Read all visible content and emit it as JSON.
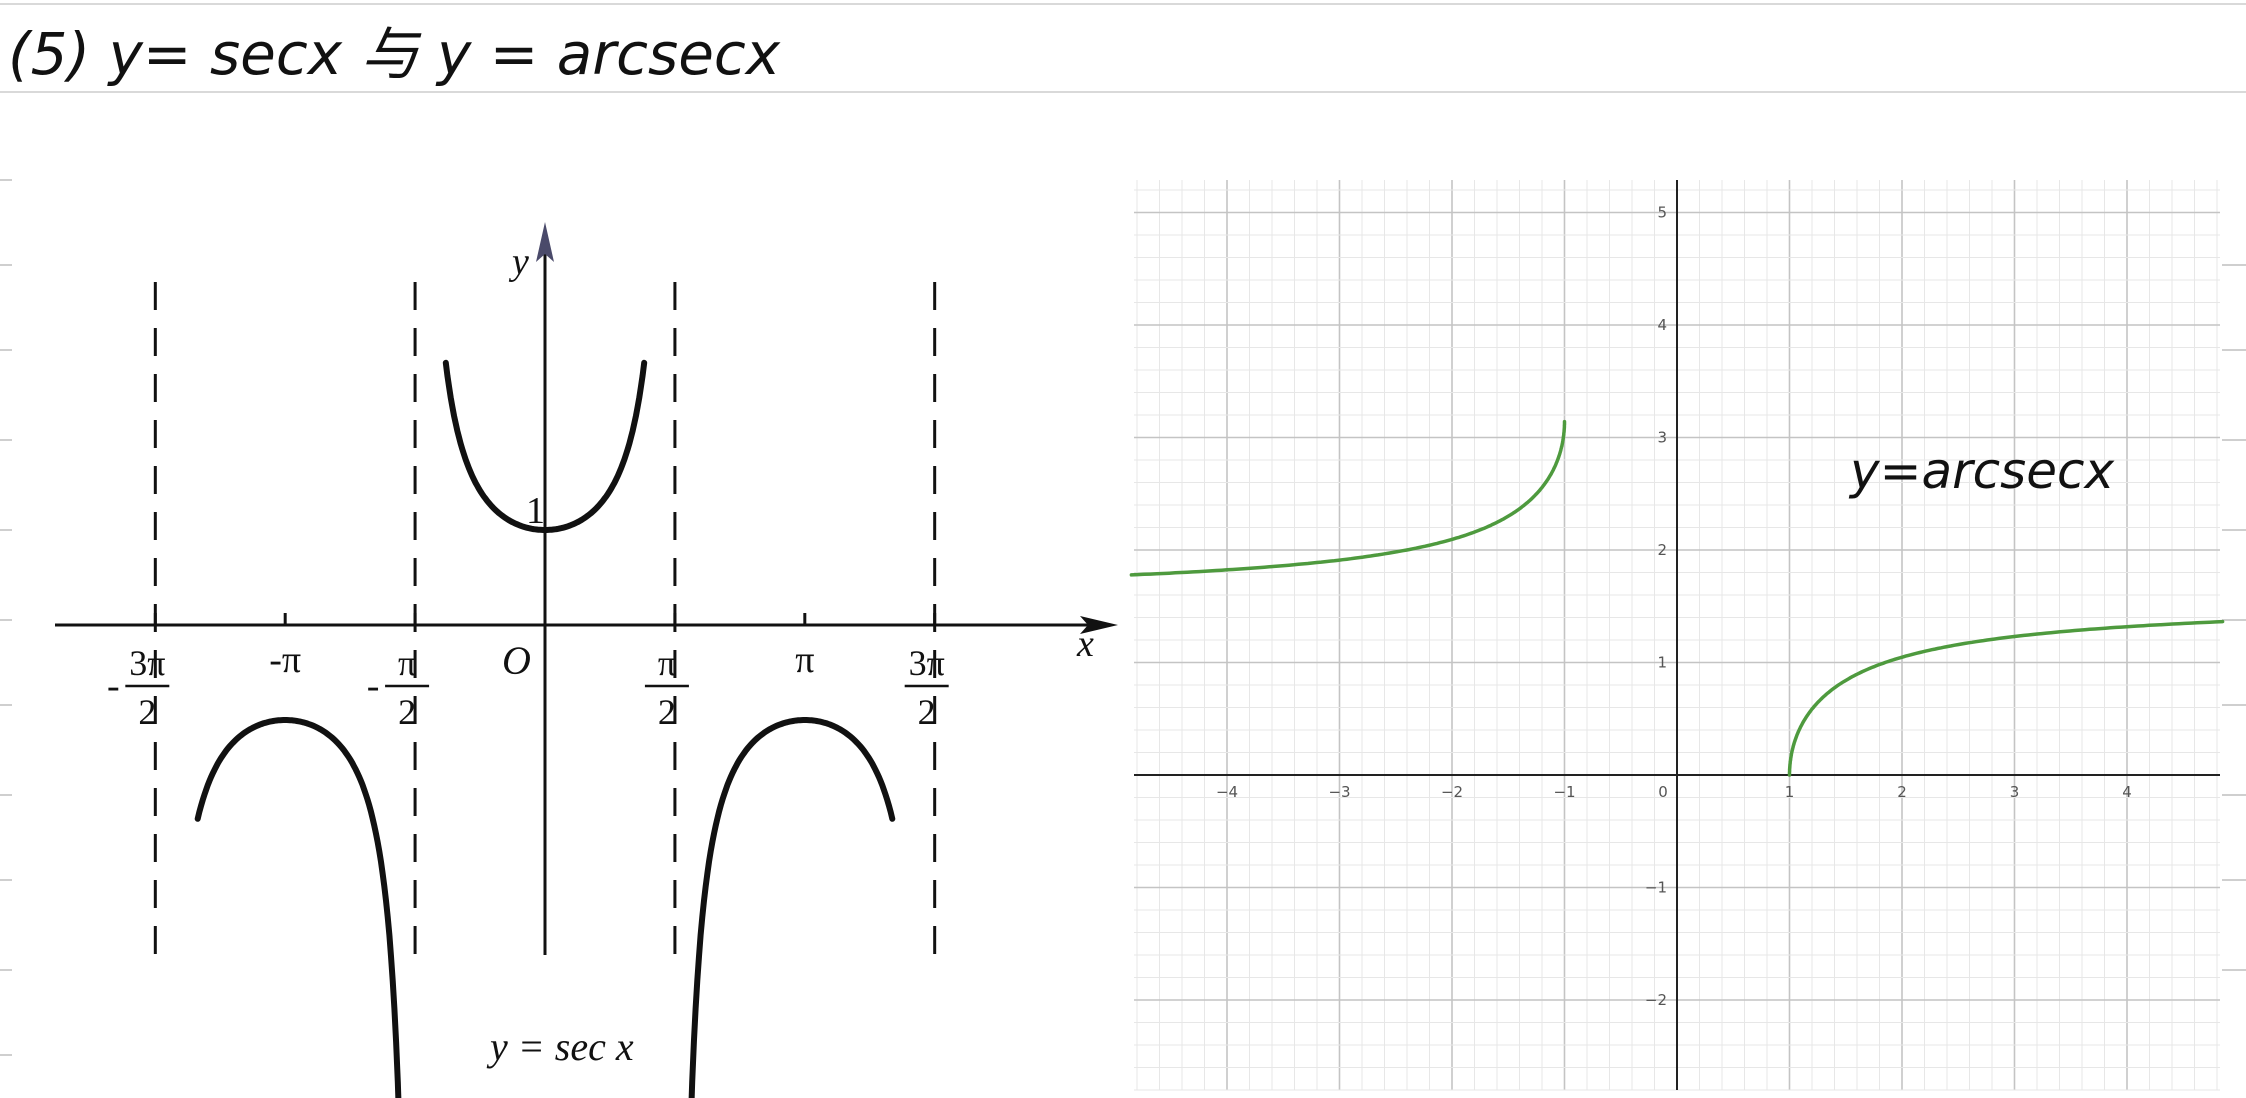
{
  "header": {
    "title": "(5)  y= secx 与 y = arcsecx"
  },
  "chart_data": [
    {
      "type": "line",
      "title": "",
      "caption": "y = sec x",
      "xlabel": "x",
      "ylabel": "y",
      "origin_label": "O",
      "function": "sec",
      "xlim": [
        -4.712,
        4.712
      ],
      "ylim": [
        -3.2,
        3.2
      ],
      "asymptotes": [
        -4.712,
        -1.571,
        1.571,
        4.712
      ],
      "x_ticks": [
        {
          "value": -4.712,
          "num": "3π",
          "den": "2",
          "sign": "-"
        },
        {
          "value": -3.1416,
          "text": "-π"
        },
        {
          "value": -1.571,
          "num": "π",
          "den": "2",
          "sign": "-"
        },
        {
          "value": 1.571,
          "num": "π",
          "den": "2",
          "sign": ""
        },
        {
          "value": 3.1416,
          "text": "π"
        },
        {
          "value": 4.712,
          "num": "3π",
          "den": "2",
          "sign": ""
        }
      ],
      "y_ticks": [
        {
          "value": 1,
          "text": "1"
        }
      ],
      "series": [
        {
          "x_range": [
            -4.2,
            -1.76
          ],
          "values_desc": "sec x, branch (-3π/2, -π/2)"
        },
        {
          "x_range": [
            -1.2,
            1.2
          ],
          "values_desc": "sec x, branch (-π/2, π/2)"
        },
        {
          "x_range": [
            1.76,
            4.2
          ],
          "values_desc": "sec x, branch (π/2, 3π/2)"
        }
      ],
      "color": "#111111"
    },
    {
      "type": "line",
      "title": "",
      "annotation": "y=arcsecx",
      "function": "arcsec",
      "xlim": [
        -4.85,
        4.85
      ],
      "ylim": [
        -2.75,
        5.2
      ],
      "x_ticks": [
        -4,
        -3,
        -2,
        -1,
        0,
        1,
        2,
        3,
        4
      ],
      "y_ticks": [
        -2,
        -1,
        1,
        2,
        3,
        4,
        5
      ],
      "grid": true,
      "series": [
        {
          "x": [
            -4.85,
            -4,
            -3,
            -2,
            -1.5,
            -1.2,
            -1.05,
            -1
          ],
          "y": [
            1.78,
            1.82,
            1.91,
            2.09,
            2.3,
            2.56,
            2.83,
            3.14
          ]
        },
        {
          "x": [
            1,
            1.05,
            1.2,
            1.5,
            2,
            3,
            4,
            4.85
          ],
          "y": [
            0,
            0.31,
            0.59,
            0.84,
            1.05,
            1.23,
            1.32,
            1.36
          ]
        }
      ],
      "color": "#4e9a3e"
    }
  ]
}
